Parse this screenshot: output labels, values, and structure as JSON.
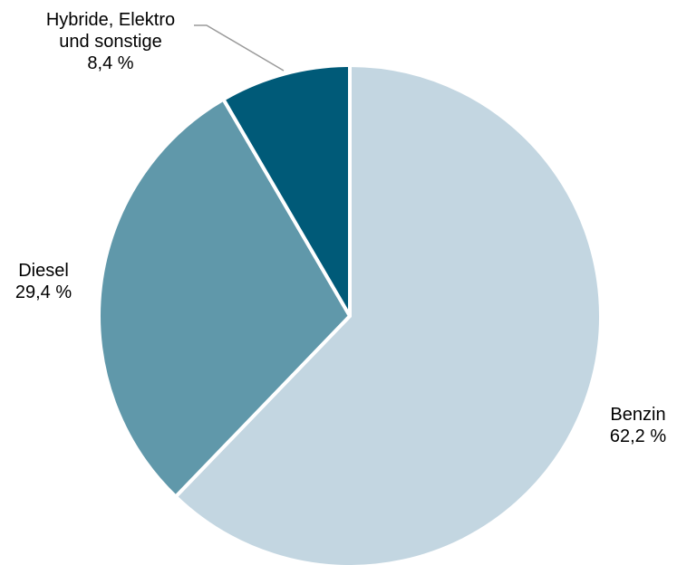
{
  "chart_data": {
    "type": "pie",
    "start_angle_deg": 0,
    "direction": "clockwise",
    "slices": [
      {
        "name": "Benzin",
        "value": 62.2,
        "value_label": "62,2 %",
        "color": "#c3d6e1",
        "label_lines": [
          "Benzin",
          "62,2 %"
        ]
      },
      {
        "name": "Diesel",
        "value": 29.4,
        "value_label": "29,4 %",
        "color": "#6098aa",
        "label_lines": [
          "Diesel",
          "29,4 %"
        ]
      },
      {
        "name": "Hybride, Elektro und sonstige",
        "value": 8.4,
        "value_label": "8,4 %",
        "color": "#005a78",
        "label_lines": [
          "Hybride, Elektro",
          "und sonstige",
          "8,4 %"
        ]
      }
    ],
    "slice_border_color": "#ffffff",
    "leader_line_color": "#9a9a9a"
  }
}
